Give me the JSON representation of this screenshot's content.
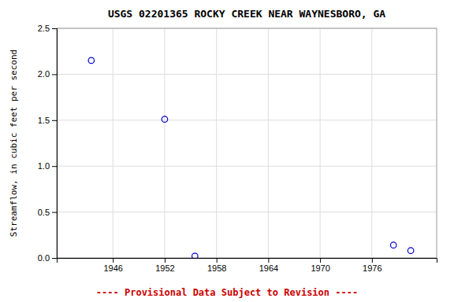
{
  "chart_data": {
    "type": "scatter",
    "title": "USGS 02201365 ROCKY CREEK NEAR WAYNESBORO, GA",
    "ylabel": "Streamflow, in cubic feet per second",
    "x": [
      1943.5,
      1952.0,
      1955.5,
      1978.5,
      1980.5
    ],
    "values": [
      2.15,
      1.51,
      0.02,
      0.14,
      0.08
    ],
    "xlim": [
      1939.5,
      1983.5
    ],
    "ylim": [
      0.0,
      2.5
    ],
    "xticks": [
      1946,
      1952,
      1958,
      1964,
      1970,
      1976
    ],
    "yticks": [
      {
        "value": 0.0,
        "label": "0.0"
      },
      0.5,
      {
        "value": 1.0,
        "label": "1.0"
      },
      1.5,
      {
        "value": 2.0,
        "label": "2.0"
      },
      2.5
    ],
    "color": "#0000CC",
    "marker": "circle",
    "grid": true,
    "annotations": [
      "---- Provisional Data Subject to Revision ----"
    ]
  }
}
